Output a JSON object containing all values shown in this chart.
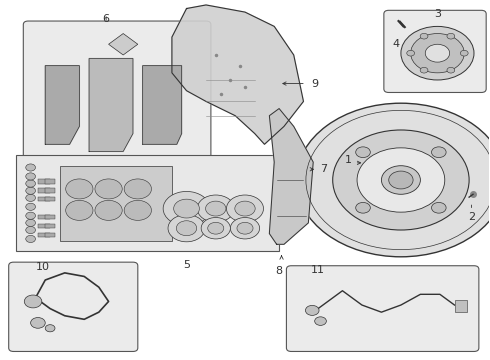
{
  "bg_color": "#ffffff",
  "light_gray": "#e8e8e8",
  "dark_gray": "#555555",
  "mid_gray": "#888888",
  "line_color": "#333333"
}
